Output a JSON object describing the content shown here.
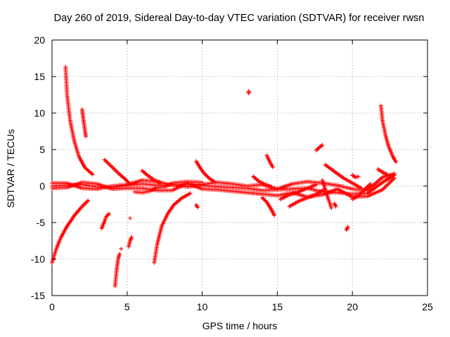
{
  "chart_data": {
    "type": "scatter",
    "title": "Day 260 of 2019, Sidereal Day-to-day VTEC variation (SDTVAR) for receiver rwsn",
    "xlabel": "GPS time / hours",
    "ylabel": "SDTVAR / TECUs",
    "xlim": [
      0,
      25
    ],
    "ylim": [
      -15,
      20
    ],
    "xticks": [
      0,
      5,
      10,
      15,
      20,
      25
    ],
    "yticks": [
      -15,
      -10,
      -5,
      0,
      5,
      10,
      15,
      20
    ],
    "grid": true,
    "marker": "+",
    "color": "#ff0000",
    "segments": [
      {
        "name": "baseline-main-a",
        "points": [
          [
            0,
            0.0
          ],
          [
            1,
            0.1
          ],
          [
            2,
            0.2
          ],
          [
            3,
            -0.1
          ],
          [
            4,
            -0.2
          ],
          [
            5,
            0.1
          ],
          [
            6,
            0.3
          ],
          [
            7,
            0.1
          ],
          [
            8,
            0.2
          ],
          [
            9,
            -0.1
          ],
          [
            10,
            0.1
          ],
          [
            11,
            -0.1
          ],
          [
            12,
            -0.2
          ],
          [
            13,
            -0.3
          ],
          [
            14,
            -0.6
          ],
          [
            15,
            -0.5
          ],
          [
            16,
            -0.4
          ],
          [
            17,
            -0.3
          ],
          [
            18,
            -0.8
          ],
          [
            19,
            -0.9
          ],
          [
            20,
            -1.1
          ],
          [
            21,
            -1.0
          ],
          [
            22,
            0.5
          ],
          [
            22.8,
            1.5
          ]
        ]
      },
      {
        "name": "baseline-main-b",
        "points": [
          [
            0,
            0.4
          ],
          [
            1,
            0.4
          ],
          [
            2,
            -0.3
          ],
          [
            3,
            -0.4
          ],
          [
            4,
            0.0
          ],
          [
            5,
            0.2
          ],
          [
            6,
            0.8
          ],
          [
            7,
            0.6
          ],
          [
            8,
            0.1
          ],
          [
            9,
            0.3
          ],
          [
            10,
            0.2
          ],
          [
            11,
            0.5
          ],
          [
            12,
            0.3
          ],
          [
            13,
            0.0
          ],
          [
            14,
            0.2
          ],
          [
            15,
            -0.4
          ],
          [
            16,
            0.3
          ],
          [
            17,
            0.6
          ],
          [
            18,
            0.4
          ],
          [
            19,
            0.1
          ],
          [
            20,
            -0.4
          ],
          [
            21,
            -0.6
          ],
          [
            22,
            1.2
          ],
          [
            22.8,
            1.7
          ]
        ]
      },
      {
        "name": "baseline-main-c",
        "points": [
          [
            0,
            -0.3
          ],
          [
            1,
            -0.2
          ],
          [
            2,
            0.5
          ],
          [
            3,
            0.3
          ],
          [
            4,
            -0.4
          ],
          [
            5,
            -0.3
          ],
          [
            6,
            -0.3
          ],
          [
            7,
            -0.6
          ],
          [
            8,
            -0.6
          ],
          [
            9,
            0.4
          ],
          [
            10,
            -0.4
          ],
          [
            11,
            -0.5
          ],
          [
            12,
            -0.7
          ],
          [
            13,
            -0.9
          ],
          [
            14,
            -1.1
          ],
          [
            15,
            -1.3
          ],
          [
            16,
            -0.9
          ],
          [
            17,
            -1.5
          ],
          [
            18,
            -1.2
          ],
          [
            19,
            -0.4
          ],
          [
            20,
            -1.5
          ],
          [
            21,
            -1.4
          ],
          [
            22,
            -0.5
          ],
          [
            22.8,
            1.1
          ]
        ]
      },
      {
        "name": "baseline-main-d",
        "points": [
          [
            5.5,
            -0.8
          ],
          [
            6,
            -0.9
          ],
          [
            6.5,
            -0.7
          ],
          [
            7,
            -0.2
          ],
          [
            7.5,
            -0.1
          ],
          [
            8,
            0.4
          ],
          [
            8.5,
            0.5
          ],
          [
            9,
            0.6
          ],
          [
            10,
            0.5
          ]
        ]
      },
      {
        "name": "decay-high-early",
        "points": [
          [
            0.9,
            16.3
          ],
          [
            1.0,
            12.5
          ],
          [
            1.2,
            9.0
          ],
          [
            1.5,
            6.0
          ],
          [
            1.8,
            4.0
          ],
          [
            2.2,
            2.5
          ],
          [
            2.7,
            1.6
          ]
        ]
      },
      {
        "name": "decay-low-early",
        "points": [
          [
            0,
            -10.5
          ],
          [
            0.3,
            -8.5
          ],
          [
            0.6,
            -7.0
          ],
          [
            1.0,
            -5.5
          ],
          [
            1.5,
            -4.0
          ],
          [
            2.0,
            -2.8
          ],
          [
            2.4,
            -2.0
          ]
        ]
      },
      {
        "name": "spike-2h",
        "points": [
          [
            2.0,
            10.5
          ],
          [
            2.1,
            9.0
          ],
          [
            2.2,
            7.5
          ],
          [
            2.25,
            6.8
          ]
        ]
      },
      {
        "name": "arc-3-5h",
        "points": [
          [
            3.5,
            3.6
          ],
          [
            4.0,
            2.6
          ],
          [
            4.5,
            1.6
          ],
          [
            4.9,
            0.9
          ],
          [
            5.2,
            0.2
          ]
        ]
      },
      {
        "name": "dip-3-5h",
        "points": [
          [
            3.3,
            -5.8
          ],
          [
            3.5,
            -4.8
          ],
          [
            3.6,
            -4.2
          ],
          [
            3.8,
            -3.8
          ]
        ]
      },
      {
        "name": "dip-4h",
        "points": [
          [
            4.2,
            -13.7
          ],
          [
            4.3,
            -11.5
          ],
          [
            4.4,
            -10.0
          ],
          [
            4.5,
            -9.3
          ]
        ]
      },
      {
        "name": "dip-5h",
        "points": [
          [
            5.1,
            -8.3
          ],
          [
            5.2,
            -7.5
          ],
          [
            5.3,
            -7.0
          ]
        ]
      },
      {
        "name": "rise-7h",
        "points": [
          [
            6.8,
            -10.5
          ],
          [
            7.0,
            -8.0
          ],
          [
            7.3,
            -5.5
          ],
          [
            7.7,
            -3.8
          ],
          [
            8.1,
            -2.6
          ],
          [
            8.6,
            -1.7
          ],
          [
            9.2,
            -1.0
          ]
        ]
      },
      {
        "name": "arc-6h",
        "points": [
          [
            6.0,
            2.1
          ],
          [
            6.4,
            1.4
          ],
          [
            6.9,
            0.7
          ],
          [
            7.3,
            0.4
          ]
        ]
      },
      {
        "name": "arc-10h",
        "points": [
          [
            9.6,
            3.4
          ],
          [
            9.8,
            2.7
          ],
          [
            10.1,
            1.8
          ],
          [
            10.5,
            1.0
          ],
          [
            10.8,
            0.6
          ]
        ]
      },
      {
        "name": "arc-13-5h",
        "points": [
          [
            13.4,
            1.3
          ],
          [
            13.8,
            0.6
          ],
          [
            14.2,
            0.2
          ],
          [
            14.6,
            -0.1
          ]
        ]
      },
      {
        "name": "arc-14-5h",
        "points": [
          [
            14.3,
            4.2
          ],
          [
            14.5,
            3.3
          ],
          [
            14.7,
            2.6
          ]
        ]
      },
      {
        "name": "drop-14-8h",
        "points": [
          [
            14.0,
            -1.6
          ],
          [
            14.3,
            -2.2
          ],
          [
            14.6,
            -3.2
          ],
          [
            14.8,
            -4.0
          ]
        ]
      },
      {
        "name": "rise-16h",
        "points": [
          [
            15.8,
            -2.8
          ],
          [
            16.4,
            -2.1
          ],
          [
            17.0,
            -1.6
          ],
          [
            17.6,
            -1.1
          ],
          [
            18.1,
            -0.5
          ]
        ]
      },
      {
        "name": "rise-17h",
        "points": [
          [
            15.2,
            -1.8
          ],
          [
            15.8,
            -1.2
          ],
          [
            16.4,
            -0.8
          ],
          [
            17.0,
            -0.3
          ],
          [
            17.6,
            0.2
          ]
        ]
      },
      {
        "name": "spike-17h",
        "points": [
          [
            17.6,
            4.9
          ],
          [
            17.8,
            5.3
          ],
          [
            18.0,
            5.6
          ]
        ]
      },
      {
        "name": "arc-18-5h",
        "points": [
          [
            18.2,
            2.9
          ],
          [
            18.8,
            2.0
          ],
          [
            19.4,
            1.1
          ],
          [
            20.0,
            0.4
          ],
          [
            20.6,
            -0.3
          ]
        ]
      },
      {
        "name": "drop-18-5h",
        "points": [
          [
            18.0,
            0.8
          ],
          [
            18.2,
            -0.5
          ],
          [
            18.4,
            -1.8
          ],
          [
            18.6,
            -3.0
          ]
        ]
      },
      {
        "name": "dip-19h",
        "points": [
          [
            18.8,
            -2.4
          ],
          [
            18.9,
            -2.8
          ]
        ]
      },
      {
        "name": "dip-19-8h",
        "points": [
          [
            19.6,
            -6.0
          ],
          [
            19.7,
            -5.6
          ]
        ]
      },
      {
        "name": "hump-20-3h",
        "points": [
          [
            20.0,
            1.5
          ],
          [
            20.2,
            1.2
          ],
          [
            20.4,
            1.3
          ]
        ]
      },
      {
        "name": "arc-20-6h",
        "points": [
          [
            20.0,
            -1.8
          ],
          [
            20.4,
            -1.3
          ],
          [
            20.8,
            -0.5
          ],
          [
            21.2,
            0.3
          ]
        ]
      },
      {
        "name": "decay-high-late",
        "points": [
          [
            21.9,
            11.0
          ],
          [
            22.0,
            9.0
          ],
          [
            22.2,
            7.0
          ],
          [
            22.4,
            5.5
          ],
          [
            22.7,
            4.0
          ],
          [
            22.9,
            3.3
          ]
        ]
      },
      {
        "name": "arc-21-8h",
        "points": [
          [
            21.7,
            2.3
          ],
          [
            22.0,
            1.9
          ],
          [
            22.3,
            1.6
          ]
        ]
      },
      {
        "name": "outlier-13h",
        "points": [
          [
            13.1,
            13.0
          ],
          [
            13.1,
            12.7
          ]
        ]
      },
      {
        "name": "outlier-9-7h",
        "points": [
          [
            9.6,
            -2.6
          ],
          [
            9.7,
            -2.9
          ]
        ]
      },
      {
        "name": "outlier-4-5h",
        "points": [
          [
            4.6,
            -8.6
          ]
        ]
      },
      {
        "name": "outlier-5-2h",
        "points": [
          [
            5.2,
            -4.4
          ]
        ]
      }
    ]
  }
}
